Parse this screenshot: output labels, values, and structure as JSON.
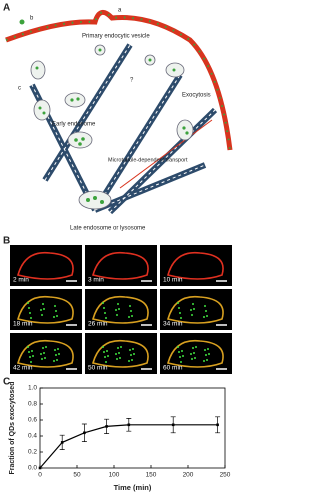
{
  "panel_labels": [
    "A",
    "B",
    "C"
  ],
  "diagram": {
    "labels": [
      "b",
      "a",
      "c",
      "?",
      "Primary endocytic vesicle",
      "Early endosome",
      "Exocytosis",
      "Microtubule-dependent transport",
      "Late endosome or lysosome"
    ]
  },
  "micrographs": {
    "labels": [
      "2 min",
      "3 min",
      "10 min",
      "18 min",
      "26 min",
      "34 min",
      "42 min",
      "50 min",
      "60 min"
    ]
  },
  "chart_data": {
    "type": "line",
    "x": [
      0,
      30,
      60,
      90,
      120,
      180,
      240
    ],
    "values": [
      0,
      0.32,
      0.44,
      0.52,
      0.54,
      0.54,
      0.54
    ],
    "errors": [
      0,
      0.09,
      0.11,
      0.09,
      0.08,
      0.1,
      0.1
    ],
    "color": "#000000",
    "xlabel": "Time (min)",
    "ylabel": "Fraction of QDs exocytosed",
    "xlim": [
      0,
      250
    ],
    "xticks": [
      0,
      50,
      100,
      150,
      200,
      250
    ],
    "ylim": [
      0,
      1.0
    ],
    "yticks": [
      {
        "value": 0,
        "label": "0.0"
      },
      0.2,
      0.4,
      0.6,
      0.8,
      {
        "value": 1.0,
        "label": "1.0"
      }
    ]
  }
}
